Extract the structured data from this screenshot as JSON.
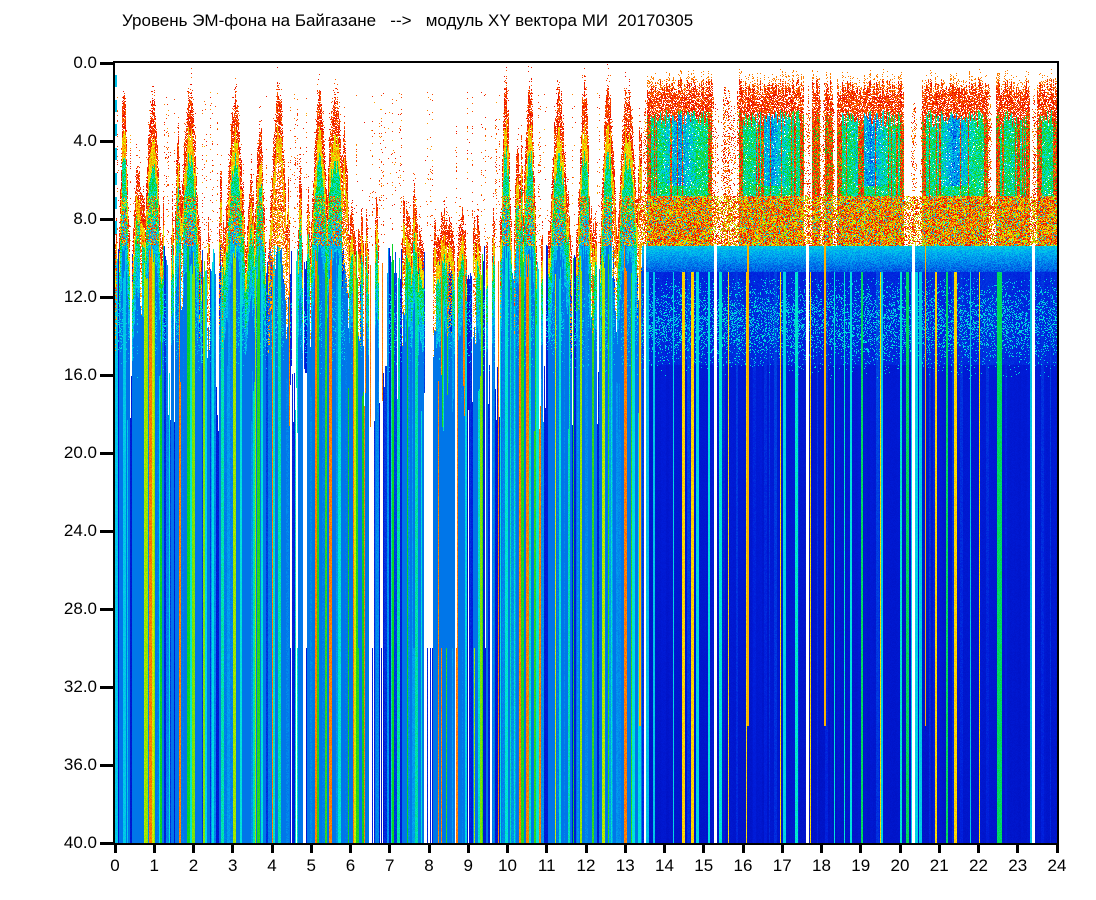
{
  "title": "Уровень ЭМ-фона на Байгазане   -->   модуль XY вектора МИ  20170305",
  "background_color": "#FFFFFF",
  "frame_color": "#000000",
  "x_axis": {
    "unit": "hours",
    "range": [
      0,
      24
    ],
    "tick_step": 1,
    "labels": [
      "0",
      "1",
      "2",
      "3",
      "4",
      "5",
      "6",
      "7",
      "8",
      "9",
      "10",
      "11",
      "12",
      "13",
      "14",
      "15",
      "16",
      "17",
      "18",
      "19",
      "20",
      "21",
      "22",
      "23",
      "24"
    ]
  },
  "y_axis": {
    "range": [
      0,
      40
    ],
    "tick_step": 4,
    "labels": [
      "0.0",
      "4.0",
      "8.0",
      "12.0",
      "16.0",
      "20.0",
      "24.0",
      "28.0",
      "32.0",
      "36.0",
      "40.0"
    ]
  },
  "chart_data": {
    "type": "heatmap",
    "subtype": "EM-background waterfall spectrogram, 24-hour record, date 20170305, station Baygazan",
    "title": "Уровень ЭМ-фона на Байгазане --> модуль XY вектора МИ 20170305",
    "xlabel_ticks_hours": [
      0,
      1,
      2,
      3,
      4,
      5,
      6,
      7,
      8,
      9,
      10,
      11,
      12,
      13,
      14,
      15,
      16,
      17,
      18,
      19,
      20,
      21,
      22,
      23,
      24
    ],
    "ylabel_ticks": [
      0,
      4,
      8,
      12,
      16,
      20,
      24,
      28,
      32,
      36,
      40
    ],
    "x": {
      "unit": "hours",
      "min": 0,
      "max": 24
    },
    "y": {
      "min": 0,
      "max": 40
    },
    "grid": false,
    "legend": "none",
    "seed": 20170305,
    "colormap": [
      [
        0.065,
        "#FFFFFF"
      ],
      [
        0.075,
        "#0000A0"
      ],
      [
        0.26,
        "#001EDC"
      ],
      [
        0.42,
        "#00AAF0"
      ],
      [
        0.5,
        "#00E6DC"
      ],
      [
        0.6,
        "#00D228"
      ],
      [
        0.72,
        "#96E600"
      ],
      [
        0.78,
        "#FAF500"
      ],
      [
        0.87,
        "#FF5A00"
      ],
      [
        1.0,
        "#E60000"
      ]
    ],
    "regimes": {
      "split_hour": 13.42,
      "left_strong_pulse_hours": [
        0.22,
        0.95,
        1.9,
        3.05,
        4.15,
        5.2,
        5.6,
        9.95,
        10.55,
        11.3,
        11.95,
        12.55,
        13.05
      ],
      "red_only_pulse_hours": [
        4.15
      ],
      "quiet_interval_hours": [
        6.0,
        9.6
      ],
      "white_wedge_hours": [
        7.9,
        9.55
      ],
      "right_blocks": [
        [
          13.55,
          15.22
        ],
        [
          15.9,
          17.55
        ],
        [
          17.75,
          17.95
        ],
        [
          18.1,
          18.3
        ],
        [
          18.4,
          20.1
        ],
        [
          20.55,
          22.25
        ],
        [
          22.45,
          23.3
        ],
        [
          23.5,
          24.0
        ]
      ],
      "white_gap_hours": [
        13.5,
        15.3,
        17.65,
        20.35,
        23.4
      ],
      "deep_red_stripe_hours": [
        13.38,
        16.12,
        18.08,
        20.65
      ],
      "red_band_depth": [
        6.8,
        9.4
      ],
      "green_blob_depth": [
        1.8,
        6.8
      ],
      "cyan_speckle_band_depth": [
        11.0,
        16.2
      ],
      "dark_blue_floor_depth": 15.5
    },
    "gen": {
      "medium_pulses": 55,
      "weak_pulses": 90,
      "right_gap_pulses": 150
    }
  }
}
